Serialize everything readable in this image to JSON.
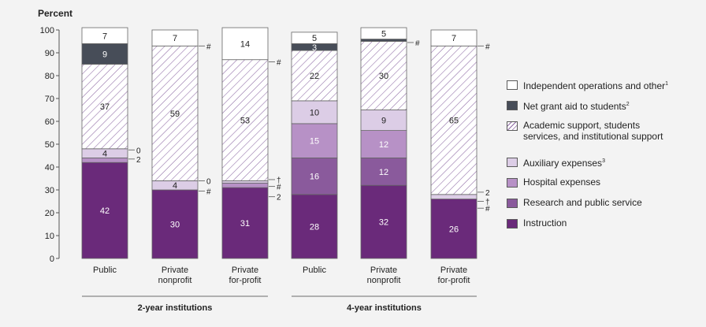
{
  "chart_data": {
    "type": "bar",
    "stacked": true,
    "ylabel": "Percent",
    "ylim": [
      0,
      100
    ],
    "yticks": [
      0,
      10,
      20,
      30,
      40,
      50,
      60,
      70,
      80,
      90,
      100
    ],
    "grid": false,
    "legend_position": "right",
    "categories": [
      "Public|2-year institutions",
      "Private nonprofit|2-year institutions",
      "Private for-profit|2-year institutions",
      "Public|4-year institutions",
      "Private nonprofit|4-year institutions",
      "Private for-profit|4-year institutions"
    ],
    "category_labels": [
      [
        "Public"
      ],
      [
        "Private",
        "nonprofit"
      ],
      [
        "Private",
        "for-profit"
      ],
      [
        "Public"
      ],
      [
        "Private",
        "nonprofit"
      ],
      [
        "Private",
        "for-profit"
      ]
    ],
    "groups": [
      {
        "label": "2-year institutions",
        "members": [
          0,
          1,
          2
        ]
      },
      {
        "label": "4-year institutions",
        "members": [
          3,
          4,
          5
        ]
      }
    ],
    "series": [
      {
        "name": "Instruction",
        "values": [
          42,
          30,
          31,
          28,
          32,
          26
        ],
        "labels": [
          "42",
          "30",
          "31",
          "28",
          "32",
          "26"
        ],
        "color": "#6a2a7a",
        "fill": "solid"
      },
      {
        "name": "Research and public service",
        "values": [
          0,
          0,
          0,
          16,
          12,
          0
        ],
        "labels": [
          "#",
          "#",
          "#",
          "16",
          "12",
          "#"
        ],
        "color": "#8a5a9c",
        "fill": "solid"
      },
      {
        "name": "Hospital expenses",
        "values": [
          2,
          0,
          2,
          15,
          12,
          0
        ],
        "labels": [
          "2",
          "",
          "2",
          "15",
          "12",
          "†"
        ],
        "color": "#b791c6",
        "fill": "solid"
      },
      {
        "name": "Auxiliary expenses³",
        "values": [
          4,
          4,
          1,
          10,
          9,
          2
        ],
        "labels": [
          "4",
          "4",
          "†",
          "10",
          "9",
          "2"
        ],
        "color": "#dccde6",
        "fill": "solid"
      },
      {
        "name": "Academic support, students services, and institutional support",
        "values": [
          37,
          59,
          53,
          22,
          30,
          65
        ],
        "labels": [
          "37",
          "59",
          "53",
          "22",
          "30",
          "65"
        ],
        "color": "#8e6aa4",
        "fill": "hatch"
      },
      {
        "name": "Net grant aid to students²",
        "values": [
          9,
          0,
          0,
          3,
          1,
          0
        ],
        "labels": [
          "9",
          "#",
          "#",
          "3",
          "#",
          "#"
        ],
        "color": "#474d58",
        "fill": "solid"
      },
      {
        "name": "Independent operations and other¹",
        "values": [
          7,
          7,
          14,
          5,
          5,
          7
        ],
        "labels": [
          "7",
          "7",
          "14",
          "5",
          "5",
          "7"
        ],
        "color": "#ffffff",
        "fill": "solid"
      }
    ],
    "outside_labels": [
      [
        {
          "text": "0",
          "at": 47.5
        },
        {
          "text": "2",
          "at": 43.5
        }
      ],
      [
        {
          "text": "#",
          "at": 93
        },
        {
          "text": "0",
          "at": 34
        },
        {
          "text": "#",
          "at": 29.5
        }
      ],
      [
        {
          "text": "#",
          "at": 86
        },
        {
          "text": "†",
          "at": 34.5
        },
        {
          "text": "#",
          "at": 31.5
        },
        {
          "text": "2",
          "at": 27
        }
      ],
      [],
      [
        {
          "text": "#",
          "at": 94.5
        }
      ],
      [
        {
          "text": "#",
          "at": 93
        },
        {
          "text": "2",
          "at": 29
        },
        {
          "text": "†",
          "at": 25
        },
        {
          "text": "#",
          "at": 22
        }
      ]
    ]
  },
  "legend": [
    {
      "label": "Independent operations and other",
      "sup": "1",
      "swatch": "#ffffff",
      "fill": "solid"
    },
    {
      "label": "Net grant aid to students",
      "sup": "2",
      "swatch": "#474d58",
      "fill": "solid"
    },
    {
      "label": "Academic support, students services, and institutional support",
      "sup": "",
      "swatch": "#8e6aa4",
      "fill": "hatch"
    },
    {
      "label": "Auxiliary expenses",
      "sup": "3",
      "swatch": "#dccde6",
      "fill": "solid"
    },
    {
      "label": "Hospital expenses",
      "sup": "",
      "swatch": "#b791c6",
      "fill": "solid"
    },
    {
      "label": "Research and public service",
      "sup": "",
      "swatch": "#8a5a9c",
      "fill": "solid"
    },
    {
      "label": "Instruction",
      "sup": "",
      "swatch": "#6a2a7a",
      "fill": "solid"
    }
  ]
}
